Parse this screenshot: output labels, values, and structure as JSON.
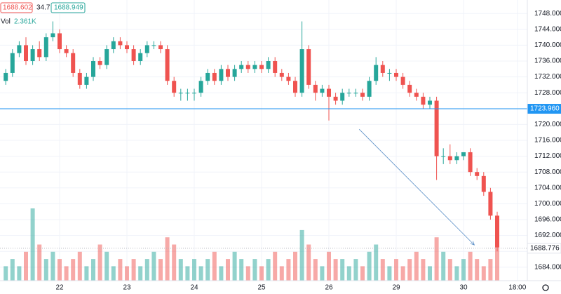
{
  "chart_data": {
    "type": "candlestick",
    "legend": {
      "open": "1688.602",
      "change": "34.7",
      "close": "1688.949",
      "volume_label": "Vol",
      "volume": "2.361K"
    },
    "categories": [
      null,
      null,
      null,
      null,
      null,
      null,
      null,
      null,
      "22",
      null,
      null,
      null,
      null,
      null,
      null,
      null,
      null,
      null,
      "23",
      null,
      null,
      null,
      null,
      null,
      null,
      null,
      null,
      null,
      "24",
      null,
      null,
      null,
      null,
      null,
      null,
      null,
      null,
      null,
      "25",
      null,
      null,
      null,
      null,
      null,
      null,
      null,
      null,
      null,
      "26",
      null,
      null,
      null,
      null,
      null,
      null,
      null,
      null,
      null,
      "29",
      null,
      null,
      null,
      null,
      null,
      null,
      null,
      null,
      null,
      "30",
      null,
      null,
      null,
      null,
      null,
      null,
      null,
      "18:00"
    ],
    "open": [
      1731,
      1733,
      1738,
      1740,
      1736,
      1739,
      1737,
      1742,
      1743,
      1739,
      1738,
      1733,
      1730,
      1732,
      1736,
      1735,
      1739,
      1741,
      1740,
      1739,
      1736,
      1738,
      1740,
      1740,
      1739,
      1731,
      1728,
      1728,
      1728,
      1728,
      1731,
      1733,
      1731,
      1734,
      1732,
      1734,
      1735,
      1734,
      1735,
      1734,
      1736,
      1733,
      1732,
      1731,
      1728,
      1739,
      1730,
      1728,
      1729,
      1727,
      1726,
      1728,
      1728,
      1728,
      1727,
      1731,
      1735,
      1733,
      1733,
      1732,
      1730,
      1728,
      1727,
      1725,
      1726,
      1712,
      1712,
      1711,
      1712,
      1713,
      1708,
      1707,
      1703,
      1697,
      null,
      null,
      null
    ],
    "high": [
      1734,
      1739,
      1741,
      1742,
      1740,
      1741,
      1743,
      1746,
      1744,
      1740,
      1739,
      1734,
      1733,
      1737,
      1737,
      1740,
      1742,
      1742,
      1741,
      1740,
      1739,
      1741,
      1741,
      1741,
      1740,
      1732,
      1729,
      1729,
      1729,
      1732,
      1734,
      1734,
      1735,
      1735,
      1735,
      1736,
      1736,
      1736,
      1736,
      1737,
      1737,
      1734,
      1733,
      1732,
      1746,
      1740,
      1731,
      1730,
      1730,
      1728,
      1729,
      1729,
      1729,
      1729,
      1732,
      1737,
      1736,
      1734,
      1734,
      1733,
      1731,
      1729,
      1728,
      1727,
      1727,
      1714,
      1715,
      1713,
      1713,
      1714,
      1709,
      1708,
      1704,
      1698,
      null,
      null,
      null
    ],
    "low": [
      1730,
      1732,
      1737,
      1735,
      1735,
      1736,
      1736,
      1741,
      1738,
      1737,
      1732,
      1729,
      1729,
      1731,
      1734,
      1734,
      1738,
      1739,
      1738,
      1735,
      1735,
      1737,
      1739,
      1738,
      1730,
      1727,
      1726,
      1726,
      1726,
      1727,
      1730,
      1730,
      1730,
      1731,
      1731,
      1733,
      1733,
      1733,
      1733,
      1733,
      1732,
      1731,
      1730,
      1727,
      1727,
      1729,
      1726,
      1727,
      1721,
      1725,
      1725,
      1727,
      1727,
      1726,
      1726,
      1730,
      1732,
      1731,
      1731,
      1729,
      1727,
      1726,
      1724,
      1724,
      1706,
      1710,
      1710,
      1710,
      1711,
      1707,
      1706,
      1702,
      1696,
      1688,
      null,
      null,
      null
    ],
    "close": [
      1733,
      1738,
      1740,
      1736,
      1739,
      1737,
      1742,
      1743,
      1739,
      1738,
      1733,
      1730,
      1732,
      1736,
      1735,
      1739,
      1741,
      1740,
      1739,
      1736,
      1738,
      1740,
      1740,
      1739,
      1731,
      1728,
      1728,
      1728,
      1728,
      1731,
      1733,
      1731,
      1734,
      1732,
      1734,
      1735,
      1734,
      1735,
      1734,
      1736,
      1733,
      1732,
      1731,
      1728,
      1739,
      1730,
      1728,
      1729,
      1727,
      1726,
      1728,
      1728,
      1728,
      1727,
      1731,
      1735,
      1733,
      1733,
      1732,
      1730,
      1728,
      1727,
      1725,
      1726,
      1712,
      1712,
      1711,
      1712,
      1713,
      1708,
      1707,
      1703,
      1697,
      1689,
      null,
      null,
      null
    ],
    "volume": [
      2,
      3,
      2,
      4,
      10,
      5,
      3,
      4,
      3,
      2,
      3,
      4,
      2,
      3,
      5,
      4,
      2,
      3,
      2,
      3,
      2,
      3,
      4,
      3,
      6,
      5,
      3,
      2,
      3,
      2,
      3,
      4,
      2,
      3,
      4,
      3,
      2,
      3,
      2,
      3,
      4,
      2,
      3,
      4,
      7,
      5,
      3,
      2,
      4,
      3,
      3,
      2,
      3,
      2,
      4,
      5,
      3,
      2,
      3,
      2,
      3,
      4,
      3,
      2,
      6,
      4,
      3,
      2,
      3,
      4,
      3,
      2,
      3,
      5,
      null,
      null,
      null
    ],
    "up_color": "#26a69a",
    "down_color": "#ef5350",
    "ylim": [
      1680.6,
      1751.4
    ],
    "yticks": [
      {
        "value": 1684,
        "label": "1684.000"
      },
      {
        "value": 1688,
        "label": "1688.000"
      },
      {
        "value": 1692,
        "label": "1692.000"
      },
      {
        "value": 1696,
        "label": "1696.000"
      },
      {
        "value": 1700,
        "label": "1700.000"
      },
      {
        "value": 1704,
        "label": "1704.000"
      },
      {
        "value": 1708,
        "label": "1708.000"
      },
      {
        "value": 1712,
        "label": "1712.000"
      },
      {
        "value": 1716,
        "label": "1716.000"
      },
      {
        "value": 1720,
        "label": "1720.000"
      },
      {
        "value": 1724,
        "label": "1724.000"
      },
      {
        "value": 1728,
        "label": "1728.000"
      },
      {
        "value": 1732,
        "label": "1732.000"
      },
      {
        "value": 1736,
        "label": "1736.000"
      },
      {
        "value": 1740,
        "label": "1740.000"
      },
      {
        "value": 1744,
        "label": "1744.000"
      },
      {
        "value": 1748,
        "label": "1748.000"
      }
    ],
    "grid": true,
    "level": {
      "value": 1723.96,
      "label": "1723.960",
      "color": "#2196f3"
    },
    "last_price": {
      "value": 1688.776,
      "label": "1688.776",
      "color": "#ef5350"
    },
    "trendline": {
      "start": [
        52.5,
        1718.8
      ],
      "end": [
        69.6,
        1689.6
      ],
      "color": "#5b8fc7"
    }
  }
}
